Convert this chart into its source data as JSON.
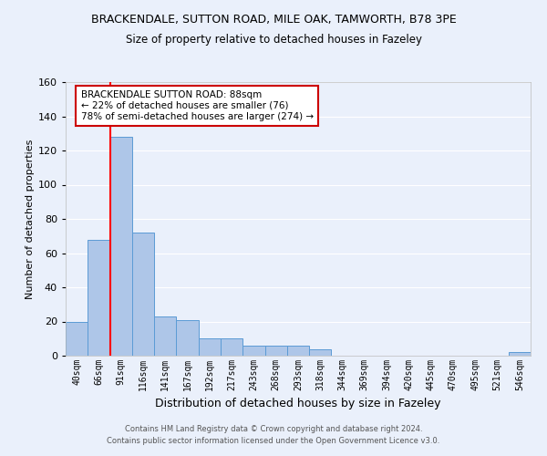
{
  "title1": "BRACKENDALE, SUTTON ROAD, MILE OAK, TAMWORTH, B78 3PE",
  "title2": "Size of property relative to detached houses in Fazeley",
  "xlabel": "Distribution of detached houses by size in Fazeley",
  "ylabel": "Number of detached properties",
  "categories": [
    "40sqm",
    "66sqm",
    "91sqm",
    "116sqm",
    "141sqm",
    "167sqm",
    "192sqm",
    "217sqm",
    "243sqm",
    "268sqm",
    "293sqm",
    "318sqm",
    "344sqm",
    "369sqm",
    "394sqm",
    "420sqm",
    "445sqm",
    "470sqm",
    "495sqm",
    "521sqm",
    "546sqm"
  ],
  "values": [
    20,
    68,
    128,
    72,
    23,
    21,
    10,
    10,
    6,
    6,
    6,
    4,
    0,
    0,
    0,
    0,
    0,
    0,
    0,
    0,
    2
  ],
  "bar_color": "#aec6e8",
  "bar_edge_color": "#5b9bd5",
  "bg_color": "#eaf0fb",
  "grid_color": "#ffffff",
  "red_line_index": 2,
  "annotation_title": "BRACKENDALE SUTTON ROAD: 88sqm",
  "annotation_line1": "← 22% of detached houses are smaller (76)",
  "annotation_line2": "78% of semi-detached houses are larger (274) →",
  "annotation_box_color": "#ffffff",
  "annotation_box_edge": "#cc0000",
  "footnote1": "Contains HM Land Registry data © Crown copyright and database right 2024.",
  "footnote2": "Contains public sector information licensed under the Open Government Licence v3.0.",
  "ylim": [
    0,
    160
  ],
  "yticks": [
    0,
    20,
    40,
    60,
    80,
    100,
    120,
    140,
    160
  ]
}
